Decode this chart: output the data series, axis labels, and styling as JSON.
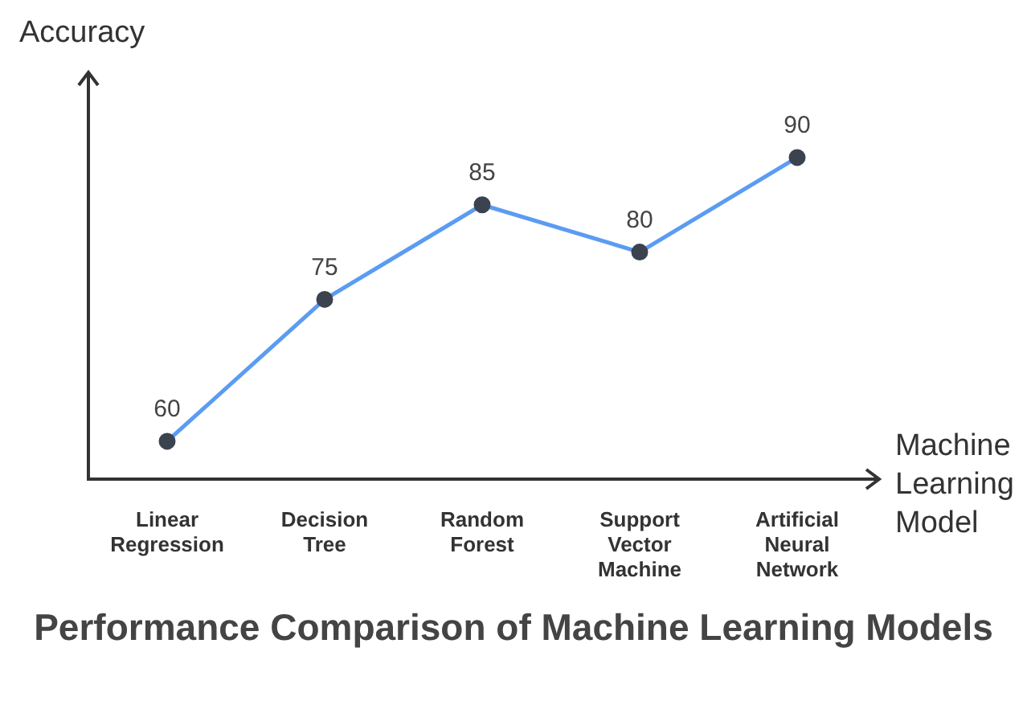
{
  "chart_data": {
    "type": "line",
    "title": "Performance Comparison of Machine Learning Models",
    "xlabel": "Machine Learning Model",
    "ylabel": "Accuracy",
    "categories": [
      "Linear Regression",
      "Decision Tree",
      "Random Forest",
      "Support Vector Machine",
      "Artificial Neural Network"
    ],
    "values": [
      60,
      75,
      85,
      80,
      90
    ],
    "color": "#5b9cf2",
    "marker": "circle",
    "data_labels": true,
    "ylim": [
      56,
      99
    ],
    "tick_labels": "x"
  }
}
